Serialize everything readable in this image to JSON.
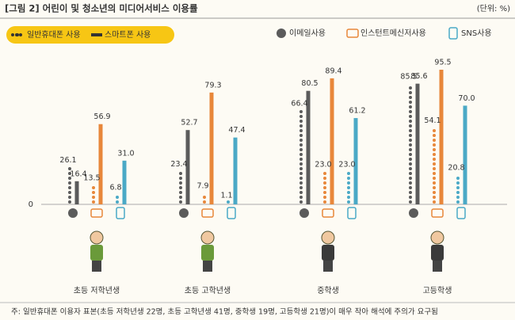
{
  "chart_data": {
    "type": "grouped-bar",
    "title": "[그림 2] 어린이 및 청소년의 미디어서비스 이용률",
    "unit": "(단위: %)",
    "devices": [
      "일반휴대폰 사용",
      "스마트폰 사용"
    ],
    "categories": [
      "초등 저학년생",
      "초등 고학년생",
      "중학생",
      "고등학생"
    ],
    "services": [
      {
        "name": "이메일사용",
        "color": "#5b5b5b",
        "series": [
          {
            "values": [
              26.1,
              23.4,
              66.4,
              85.5
            ],
            "value_labels": [
              "26.1",
              "23.4",
              "66.4",
              "85.5"
            ]
          },
          {
            "values": [
              16.4,
              52.7,
              80.5,
              85.6
            ],
            "value_labels": [
              "16.4",
              "52.7",
              "80.5",
              "85.6"
            ]
          }
        ]
      },
      {
        "name": "인스턴트메신저사용",
        "color": "#e8873a",
        "series": [
          {
            "values": [
              13.5,
              7.9,
              23.0,
              54.1
            ],
            "value_labels": [
              "13.5",
              "7.9",
              "23.0",
              "54.1"
            ]
          },
          {
            "values": [
              56.9,
              79.3,
              89.4,
              95.5
            ],
            "value_labels": [
              "56.9",
              "79.3",
              "89.4",
              "95.5"
            ]
          }
        ]
      },
      {
        "name": "SNS사용",
        "color": "#4aa9c6",
        "series": [
          {
            "values": [
              6.8,
              1.1,
              23.0,
              20.8
            ],
            "value_labels": [
              "6.8",
              "1.1",
              "23.0",
              "20.8"
            ]
          },
          {
            "values": [
              31.0,
              47.4,
              61.2,
              70.0
            ],
            "value_labels": [
              "31.0",
              "47.4",
              "61.2",
              "70.0"
            ]
          }
        ]
      }
    ],
    "ylim": [
      0,
      100
    ],
    "yticks": [
      0
    ],
    "note": "주: 일반휴대폰 이용자 표본(초등 저학년생 22명, 초등 고학년생 41명, 중학생 19명, 고등학생 21명)이 매우 작아 해석에 주의가 요구됨"
  }
}
